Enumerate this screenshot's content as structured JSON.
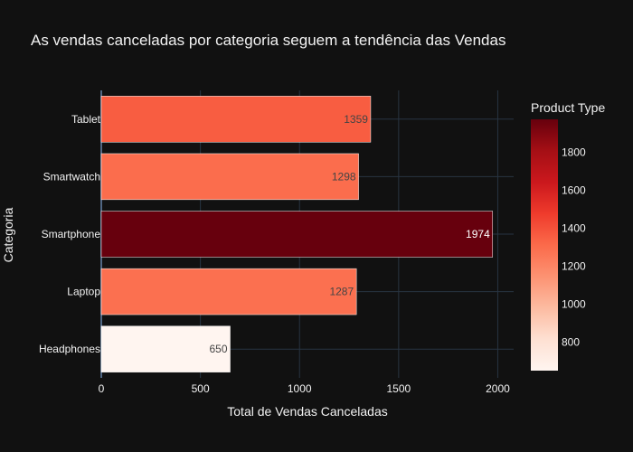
{
  "chart_data": {
    "type": "bar",
    "orientation": "horizontal",
    "title": "As vendas canceladas por categoria seguem a tendência das Vendas",
    "xlabel": "Total de Vendas Canceladas",
    "ylabel": "Categoria",
    "categories": [
      "Headphones",
      "Laptop",
      "Smartphone",
      "Smartwatch",
      "Tablet"
    ],
    "values": [
      650,
      1287,
      1974,
      1298,
      1359
    ],
    "data_labels": [
      "650",
      "1287",
      "1974",
      "1298",
      "1359"
    ],
    "xlim": [
      0,
      2080
    ],
    "x_ticks": [
      0,
      500,
      1000,
      1500,
      2000
    ],
    "x_tick_labels": [
      "0",
      "500",
      "1000",
      "1500",
      "2000"
    ],
    "grid": true,
    "colorbar": {
      "title": "Product Type",
      "colorscale": "Reds",
      "range": [
        650,
        1974
      ],
      "ticks": [
        800,
        1000,
        1200,
        1400,
        1600,
        1800
      ],
      "tick_labels": [
        "800",
        "1000",
        "1200",
        "1400",
        "1600",
        "1800"
      ]
    },
    "colors": {
      "background": "#111111",
      "grid": "#283442",
      "text": "#f2f2f2"
    }
  }
}
